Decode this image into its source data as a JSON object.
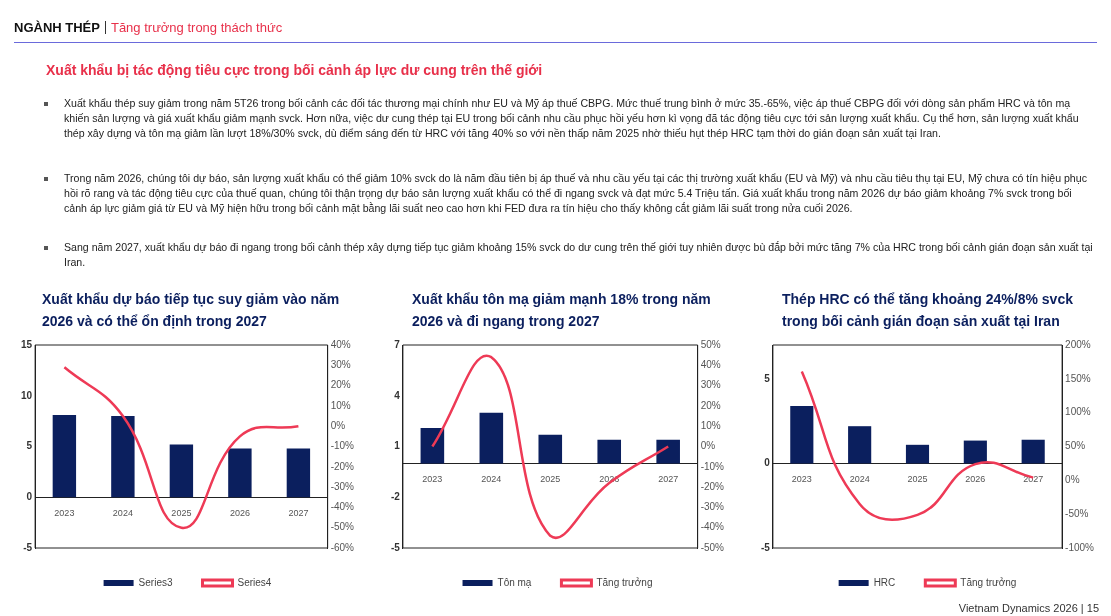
{
  "chart_data": [
    {
      "type": "other",
      "title": "NGÀNH THÉP",
      "subtitle": "Tăng trưởng trong thách thức",
      "annotations": [
        "Xuất khẩu bị tác động tiêu cực trong bối cảnh áp lực dư cung trên thế giới",
        "Xuất khẩu thép suy giảm trong năm 5T26 trong bối cảnh các đối tác thương mại chính như EU và Mỹ áp thuế CBPG. Mức thuế trung bình ở mức 35.-65%, việc áp thuế CBPG đối với dòng sản phẩm HRC và tôn mạ khiến sản lượng và giá xuất khẩu giảm mạnh svck. Hơn nữa, việc dư cung thép tại EU trong bối cảnh nhu cầu phục hồi yếu hơn kì vọng đã tác động tiêu cực tới sản lượng xuất khẩu. Cụ thể hơn, sản lượng xuất khẩu thép xây dựng và tôn mạ giảm lần lượt  18%/30% svck, dù điểm sáng đến từ HRC với tăng 40% so với nền thấp năm 2025 nhờ thiếu hụt thép HRC tạm thời do gián đoạn sản xuất tại Iran.",
        "Trong năm 2026, chúng tôi dự báo, sản lượng xuất khẩu có thể giảm 10% svck do là năm đầu tiên bị áp thuế và nhu cầu yếu tại các thị trường xuất khẩu (EU và Mỹ) và nhu cầu tiêu thụ tại EU, Mỹ chưa có tín hiệu phục hồi rõ rang và tác động tiêu cực của thuế quan, chúng tôi thận trọng dự báo sản lượng xuất khẩu có thể đi ngang svck và đạt mức 5.4 Triệu tấn. Giá xuất khẩu trong năm 2026 dự báo giảm khoảng 7% svck trong bối cảnh áp lực giảm giá từ EU và Mỹ hiện hữu trong bối cảnh mặt bằng lãi suất neo cao hơn khi FED đưa ra tín hiệu cho thấy không cắt giảm lãi suất trong nửa cuối 2026.",
        "Sang năm 2027, xuất khẩu dự báo đi ngang trong bối cảnh thép xây dựng tiếp tục giảm khoảng 15% svck do dư cung trên thế giới tuy nhiên được bù đắp bởi mức tăng 7% của HRC trong bối cảnh gián đoạn sản xuất tại Iran.",
        "Vietnam Dynamics 2026 | 15"
      ]
    },
    {
      "type": "bar",
      "title": "Xuất khẩu dự báo tiếp tục suy giảm vào năm 2026 và có thể ổn định trong 2027",
      "categories": [
        "2023",
        "2024",
        "2025",
        "2026",
        "2027"
      ],
      "series": [
        {
          "name": "Series3",
          "color": "#0b1f5e",
          "values": [
            8.1,
            8.0,
            5.2,
            4.8,
            4.8
          ]
        },
        {
          "name": "Series4",
          "type": "line",
          "axis": "y2",
          "color": "#ee3a56",
          "values": [
            29,
            5,
            -50,
            -5,
            0
          ]
        }
      ],
      "ylim": [
        -5,
        15
      ],
      "yticks": [
        -5,
        0,
        5,
        10,
        15
      ],
      "y2lim": [
        -60,
        40
      ],
      "y2ticks": [
        {
          "value": -60,
          "label": "-60%"
        },
        {
          "value": -50,
          "label": "-50%"
        },
        {
          "value": -40,
          "label": "-40%"
        },
        {
          "value": -30,
          "label": "-30%"
        },
        {
          "value": -20,
          "label": "-20%"
        },
        {
          "value": -10,
          "label": "-10%"
        },
        {
          "value": 0,
          "label": "0%"
        },
        {
          "value": 10,
          "label": "10%"
        },
        {
          "value": 20,
          "label": "20%"
        },
        {
          "value": 30,
          "label": "30%"
        },
        {
          "value": 40,
          "label": "40%"
        }
      ],
      "legend": "bottom",
      "marker": "none"
    },
    {
      "type": "bar",
      "title": "Xuất khẩu tôn mạ giảm mạnh 18% trong năm 2026 và đi ngang trong 2027",
      "categories": [
        "2023",
        "2024",
        "2025",
        "2026",
        "2027"
      ],
      "series": [
        {
          "name": "Tôn mạ",
          "color": "#0b1f5e",
          "values": [
            2.1,
            3.0,
            1.7,
            1.4,
            1.4
          ]
        },
        {
          "name": "Tăng trưởng",
          "type": "line",
          "axis": "y2",
          "color": "#ee3a56",
          "values": [
            0,
            44,
            -44,
            -18,
            0
          ]
        }
      ],
      "ylim": [
        -5,
        7
      ],
      "yticks": [
        -5,
        -2,
        1,
        4,
        7
      ],
      "y2lim": [
        -50,
        50
      ],
      "y2ticks": [
        {
          "value": -50,
          "label": "-50%"
        },
        {
          "value": -40,
          "label": "-40%"
        },
        {
          "value": -30,
          "label": "-30%"
        },
        {
          "value": -20,
          "label": "-20%"
        },
        {
          "value": -10,
          "label": "-10%"
        },
        {
          "value": 0,
          "label": "0%"
        },
        {
          "value": 10,
          "label": "10%"
        },
        {
          "value": 20,
          "label": "20%"
        },
        {
          "value": 30,
          "label": "30%"
        },
        {
          "value": 40,
          "label": "40%"
        },
        {
          "value": 50,
          "label": "50%"
        }
      ],
      "legend": "bottom",
      "marker": "none"
    },
    {
      "type": "bar",
      "title": "Thép HRC có thể tăng khoảng 24%/8% svck trong bối cảnh gián đoạn sản xuất tại Iran",
      "categories": [
        "2023",
        "2024",
        "2025",
        "2026",
        "2027"
      ],
      "series": [
        {
          "name": "HRC",
          "color": "#0b1f5e",
          "values": [
            3.4,
            2.2,
            1.1,
            1.35,
            1.4
          ]
        },
        {
          "name": "Tăng trưởng",
          "type": "line",
          "axis": "y2",
          "color": "#ee3a56",
          "values": [
            161,
            -35,
            -51,
            24,
            4
          ]
        }
      ],
      "ylim": [
        -5,
        7
      ],
      "yticks": [
        -5,
        0,
        5
      ],
      "y2lim": [
        -100,
        200
      ],
      "y2ticks": [
        {
          "value": -100,
          "label": "-100%"
        },
        {
          "value": -50,
          "label": "-50%"
        },
        {
          "value": 0,
          "label": "0%"
        },
        {
          "value": 50,
          "label": "50%"
        },
        {
          "value": 100,
          "label": "100%"
        },
        {
          "value": 150,
          "label": "150%"
        },
        {
          "value": 200,
          "label": "200%"
        }
      ],
      "legend": "bottom",
      "marker": "none"
    }
  ]
}
